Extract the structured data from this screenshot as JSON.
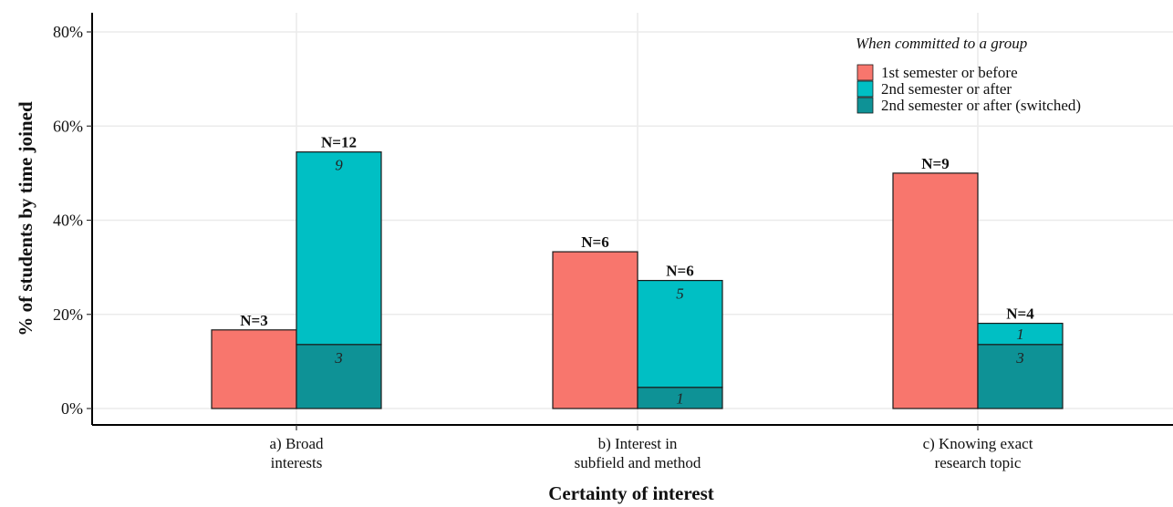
{
  "chart_data": {
    "type": "bar",
    "xlabel": "Certainty of interest",
    "ylabel": "% of students by time joined",
    "ylim": [
      0,
      0.8
    ],
    "yticks": [
      {
        "value": 0.0,
        "label": "0%"
      },
      {
        "value": 0.2,
        "label": "20%"
      },
      {
        "value": 0.4,
        "label": "40%"
      },
      {
        "value": 0.6,
        "label": "60%"
      },
      {
        "value": 0.8,
        "label": "80%"
      }
    ],
    "grid": true,
    "legend": {
      "position": "top-right",
      "title": "When committed to a group",
      "entries": [
        {
          "name": "1st semester or before",
          "color": "#F8766D"
        },
        {
          "name": "2nd semester or after",
          "color": "#00BFC4"
        },
        {
          "name": "2nd semester or after (switched)",
          "color": "#0E9296"
        }
      ]
    },
    "categories": [
      {
        "label_lines": [
          "a) Broad",
          "interests"
        ],
        "bars": [
          {
            "n_label": "N=3",
            "segments": [
              {
                "series": "1st semester or before",
                "value": 0.167,
                "label": ""
              }
            ]
          },
          {
            "n_label": "N=12",
            "segments": [
              {
                "series": "2nd semester or after (switched)",
                "value": 0.136,
                "label": "3"
              },
              {
                "series": "2nd semester or after",
                "value": 0.409,
                "label": "9"
              }
            ]
          }
        ]
      },
      {
        "label_lines": [
          "b) Interest in",
          "subfield and method"
        ],
        "bars": [
          {
            "n_label": "N=6",
            "segments": [
              {
                "series": "1st semester or before",
                "value": 0.333,
                "label": ""
              }
            ]
          },
          {
            "n_label": "N=6",
            "segments": [
              {
                "series": "2nd semester or after (switched)",
                "value": 0.045,
                "label": "1"
              },
              {
                "series": "2nd semester or after",
                "value": 0.227,
                "label": "5"
              }
            ]
          }
        ]
      },
      {
        "label_lines": [
          "c) Knowing exact",
          "research topic"
        ],
        "bars": [
          {
            "n_label": "N=9",
            "segments": [
              {
                "series": "1st semester or before",
                "value": 0.5,
                "label": ""
              }
            ]
          },
          {
            "n_label": "N=4",
            "segments": [
              {
                "series": "2nd semester or after (switched)",
                "value": 0.136,
                "label": "3"
              },
              {
                "series": "2nd semester or after",
                "value": 0.045,
                "label": "1"
              }
            ]
          }
        ]
      }
    ]
  }
}
